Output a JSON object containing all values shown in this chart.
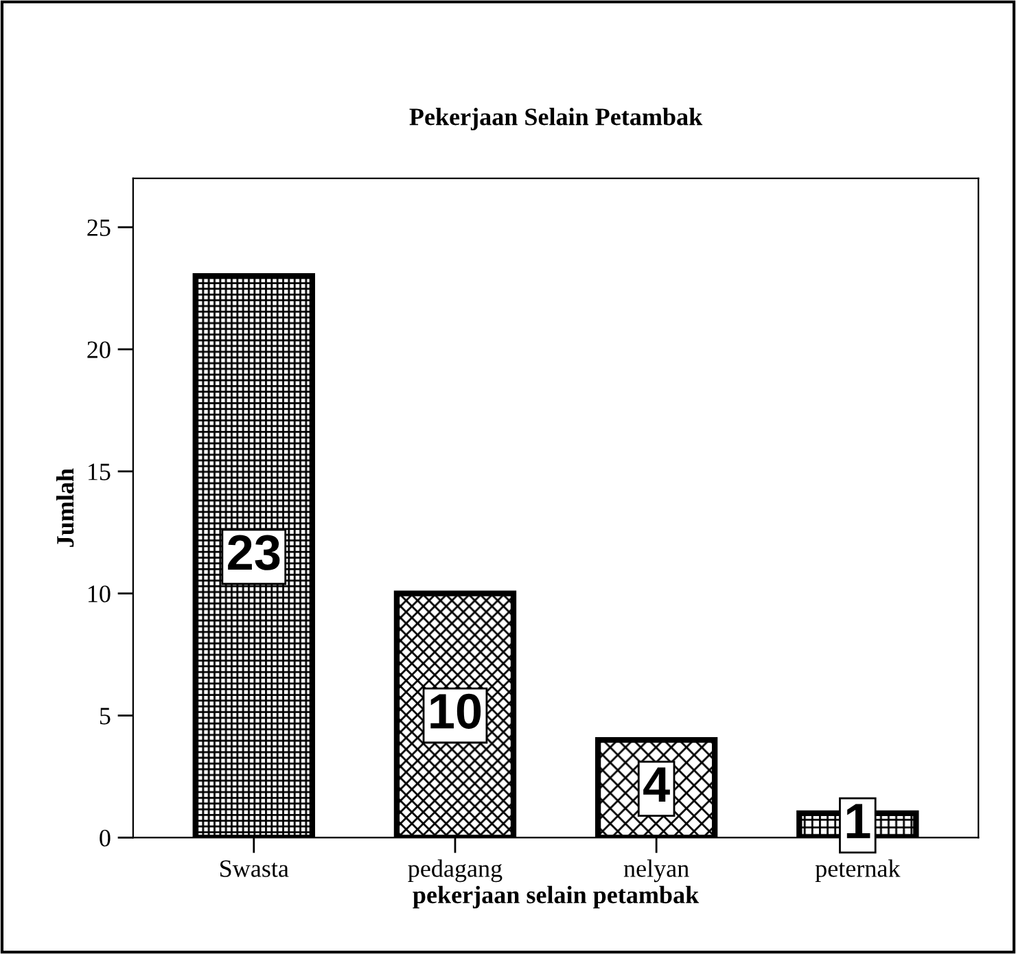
{
  "chart_data": {
    "type": "bar",
    "title": "Pekerjaan Selain Petambak",
    "xlabel": "pekerjaan selain petambak",
    "ylabel": "Jumlah",
    "categories": [
      "Swasta",
      "pedagang",
      "nelyan",
      "peternak"
    ],
    "values": [
      23,
      10,
      4,
      1
    ],
    "colors": [
      "#000000",
      "#000000",
      "#000000",
      "#000000"
    ],
    "ylim": [
      0,
      27
    ],
    "yticks": [
      0,
      5,
      10,
      15,
      20,
      25
    ],
    "grid": false,
    "data_labels": true
  }
}
